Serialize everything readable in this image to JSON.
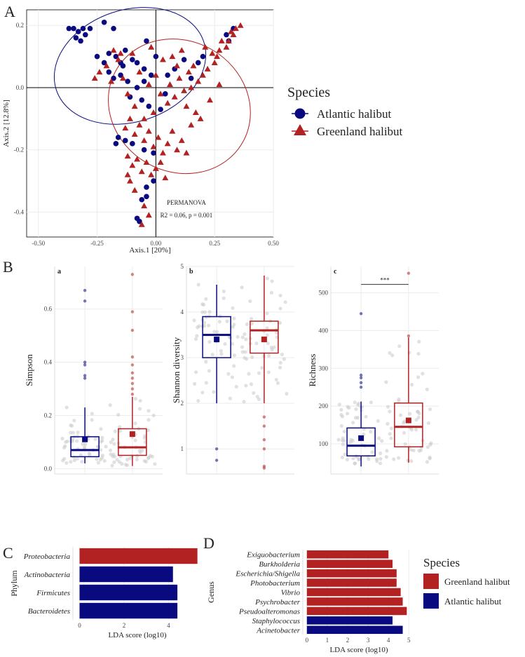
{
  "colors": {
    "atlantic": "#0a0a80",
    "greenland": "#b22222",
    "grid": "#ebebeb",
    "axis": "#333333",
    "jitter": "#c8c8c8"
  },
  "panels": {
    "A": "A",
    "B": "B",
    "C": "C",
    "D": "D"
  },
  "chart_data": [
    {
      "id": "pcoa",
      "type": "scatter",
      "xlabel": "Axis.1   [20%]",
      "ylabel": "Axis.2   [12.8%]",
      "xlim": [
        -0.55,
        0.5
      ],
      "ylim": [
        -0.48,
        0.25
      ],
      "xticks": [
        "-0.50",
        "-0.25",
        "0.00",
        "0.25",
        "0.50"
      ],
      "xtick_values": [
        -0.5,
        -0.25,
        0,
        0.25,
        0.5
      ],
      "yticks": [
        "0.2",
        "0.0",
        "-0.2",
        "-0.4"
      ],
      "ytick_values": [
        0.2,
        0,
        -0.2,
        -0.4
      ],
      "annotation_title": "PERMANOVA",
      "annotation_text": "R2 = 0.06, p = 0.001",
      "legend_title": "Species",
      "series": [
        {
          "name": "Atlantic halibut",
          "marker": "circle",
          "points": [
            [
              -0.37,
              0.19
            ],
            [
              -0.35,
              0.19
            ],
            [
              -0.33,
              0.18
            ],
            [
              -0.34,
              0.16
            ],
            [
              -0.32,
              0.15
            ],
            [
              -0.3,
              0.17
            ],
            [
              -0.31,
              0.19
            ],
            [
              -0.28,
              0.19
            ],
            [
              -0.22,
              0.21
            ],
            [
              -0.18,
              0.19
            ],
            [
              -0.25,
              0.1
            ],
            [
              -0.22,
              0.08
            ],
            [
              -0.2,
              0.11
            ],
            [
              -0.17,
              0.1
            ],
            [
              -0.15,
              0.08
            ],
            [
              -0.14,
              0.07
            ],
            [
              -0.13,
              0.12
            ],
            [
              -0.1,
              0.09
            ],
            [
              -0.08,
              0.08
            ],
            [
              -0.05,
              0.06
            ],
            [
              -0.04,
              0.15
            ],
            [
              0.0,
              0.1
            ],
            [
              -0.02,
              0.04
            ],
            [
              -0.05,
              0.02
            ],
            [
              -0.08,
              0.0
            ],
            [
              -0.12,
              0.02
            ],
            [
              -0.15,
              0.04
            ],
            [
              -0.18,
              0.03
            ],
            [
              -0.2,
              0.05
            ],
            [
              -0.11,
              -0.03
            ],
            [
              -0.06,
              -0.04
            ],
            [
              -0.03,
              -0.06
            ],
            [
              0.02,
              -0.07
            ],
            [
              0.04,
              -0.02
            ],
            [
              0.05,
              0.04
            ],
            [
              0.08,
              0.06
            ],
            [
              0.12,
              0.09
            ],
            [
              0.15,
              0.03
            ],
            [
              0.18,
              0.08
            ],
            [
              0.2,
              0.1
            ],
            [
              0.3,
              0.17
            ],
            [
              0.33,
              0.19
            ],
            [
              0.31,
              0.15
            ],
            [
              -0.13,
              -0.17
            ],
            [
              -0.1,
              -0.18
            ],
            [
              -0.05,
              -0.2
            ],
            [
              -0.01,
              -0.21
            ],
            [
              -0.17,
              -0.18
            ],
            [
              -0.16,
              -0.16
            ],
            [
              -0.04,
              -0.32
            ],
            [
              -0.04,
              -0.35
            ],
            [
              -0.06,
              -0.36
            ],
            [
              -0.07,
              -0.43
            ],
            [
              -0.08,
              -0.42
            ],
            [
              -0.01,
              -0.3
            ]
          ]
        },
        {
          "name": "Greenland halibut",
          "marker": "triangle",
          "points": [
            [
              0.36,
              0.2
            ],
            [
              0.34,
              0.19
            ],
            [
              0.33,
              0.17
            ],
            [
              0.32,
              0.18
            ],
            [
              0.31,
              0.15
            ],
            [
              0.3,
              0.13
            ],
            [
              0.28,
              0.15
            ],
            [
              0.27,
              0.12
            ],
            [
              0.26,
              0.1
            ],
            [
              0.25,
              0.08
            ],
            [
              0.24,
              0.11
            ],
            [
              0.22,
              0.06
            ],
            [
              0.21,
              0.13
            ],
            [
              0.2,
              0.04
            ],
            [
              0.18,
              0.02
            ],
            [
              0.16,
              0.07
            ],
            [
              0.15,
              0.0
            ],
            [
              0.14,
              0.05
            ],
            [
              0.12,
              -0.01
            ],
            [
              0.1,
              0.03
            ],
            [
              0.09,
              0.07
            ],
            [
              0.08,
              -0.03
            ],
            [
              0.06,
              0.01
            ],
            [
              0.05,
              -0.05
            ],
            [
              0.03,
              0.09
            ],
            [
              0.02,
              -0.02
            ],
            [
              0.0,
              0.04
            ],
            [
              -0.01,
              -0.08
            ],
            [
              -0.03,
              0.01
            ],
            [
              -0.05,
              -0.1
            ],
            [
              -0.07,
              0.05
            ],
            [
              -0.09,
              -0.06
            ],
            [
              -0.1,
              0.11
            ],
            [
              -0.12,
              -0.02
            ],
            [
              -0.14,
              0.03
            ],
            [
              -0.16,
              0.09
            ],
            [
              -0.19,
              0.02
            ],
            [
              -0.21,
              0.07
            ],
            [
              -0.24,
              0.05
            ],
            [
              -0.26,
              0.03
            ],
            [
              -0.18,
              0.12
            ],
            [
              -0.15,
              0.11
            ],
            [
              -0.13,
              -0.13
            ],
            [
              -0.11,
              -0.1
            ],
            [
              -0.09,
              -0.15
            ],
            [
              -0.07,
              -0.12
            ],
            [
              -0.05,
              -0.17
            ],
            [
              -0.03,
              -0.14
            ],
            [
              -0.01,
              -0.19
            ],
            [
              0.01,
              -0.16
            ],
            [
              0.03,
              -0.21
            ],
            [
              0.05,
              -0.18
            ],
            [
              0.07,
              -0.14
            ],
            [
              0.09,
              -0.2
            ],
            [
              0.11,
              -0.17
            ],
            [
              0.13,
              -0.21
            ],
            [
              0.15,
              -0.12
            ],
            [
              0.17,
              -0.08
            ],
            [
              0.19,
              -0.1
            ],
            [
              0.23,
              -0.04
            ],
            [
              -0.12,
              -0.22
            ],
            [
              -0.1,
              -0.25
            ],
            [
              -0.08,
              -0.23
            ],
            [
              -0.06,
              -0.27
            ],
            [
              -0.04,
              -0.24
            ],
            [
              -0.02,
              -0.28
            ],
            [
              0.0,
              -0.26
            ],
            [
              0.02,
              -0.24
            ],
            [
              0.04,
              -0.29
            ],
            [
              -0.11,
              -0.3
            ],
            [
              -0.09,
              -0.33
            ],
            [
              -0.12,
              -0.28
            ],
            [
              -0.03,
              -0.41
            ],
            [
              -0.06,
              -0.44
            ],
            [
              -0.05,
              -0.38
            ],
            [
              0.27,
              0.01
            ],
            [
              0.11,
              0.12
            ],
            [
              0.07,
              0.1
            ],
            [
              -0.02,
              0.13
            ],
            [
              0.13,
              -0.06
            ]
          ]
        }
      ],
      "ellipses": [
        {
          "series": "Atlantic halibut",
          "cx": -0.11,
          "cy": 0.07,
          "rx": 0.33,
          "ry": 0.18,
          "angle_deg": -18
        },
        {
          "series": "Greenland halibut",
          "cx": 0.1,
          "cy": -0.06,
          "rx": 0.31,
          "ry": 0.21,
          "angle_deg": 30
        }
      ]
    },
    {
      "id": "simpson",
      "type": "box",
      "panel_label": "a",
      "ylabel": "Simpson",
      "ylim": [
        -0.02,
        0.76
      ],
      "yticks": [
        "0.0",
        "0.2",
        "0.4",
        "0.6"
      ],
      "ytick_values": [
        0,
        0.2,
        0.4,
        0.6
      ],
      "groups": [
        {
          "name": "Atlantic halibut",
          "min": 0.02,
          "q1": 0.045,
          "median": 0.07,
          "q3": 0.12,
          "max": 0.23,
          "mean": 0.11,
          "outliers": [
            0.67,
            0.63,
            0.4,
            0.39,
            0.35,
            0.34
          ]
        },
        {
          "name": "Greenland halibut",
          "min": 0.01,
          "q1": 0.05,
          "median": 0.08,
          "q3": 0.15,
          "max": 0.27,
          "mean": 0.13,
          "outliers": [
            0.73,
            0.59,
            0.52,
            0.42,
            0.39,
            0.36,
            0.34,
            0.32,
            0.3,
            0.28
          ]
        }
      ]
    },
    {
      "id": "shannon",
      "type": "box",
      "panel_label": "b",
      "ylabel": "Shannon diversity",
      "ylim": [
        0.45,
        5.0
      ],
      "yticks": [
        "1",
        "2",
        "3",
        "4",
        "5"
      ],
      "ytick_values": [
        1,
        2,
        3,
        4,
        5
      ],
      "groups": [
        {
          "name": "Atlantic halibut",
          "min": 2.0,
          "q1": 3.0,
          "median": 3.5,
          "q3": 3.9,
          "max": 4.6,
          "mean": 3.4,
          "outliers": [
            1.0,
            0.75
          ]
        },
        {
          "name": "Greenland halibut",
          "min": 2.0,
          "q1": 3.1,
          "median": 3.6,
          "q3": 3.8,
          "max": 4.8,
          "mean": 3.4,
          "outliers": [
            1.7,
            1.5,
            1.2,
            1.0,
            0.62,
            0.58
          ]
        }
      ]
    },
    {
      "id": "richness",
      "type": "box",
      "panel_label": "c",
      "ylabel": "Richness",
      "ylim": [
        20,
        570
      ],
      "yticks": [
        "100",
        "200",
        "300",
        "400",
        "500"
      ],
      "ytick_values": [
        100,
        200,
        300,
        400,
        500
      ],
      "significance": "***",
      "groups": [
        {
          "name": "Atlantic halibut",
          "min": 40,
          "q1": 68,
          "median": 95,
          "q3": 142,
          "max": 212,
          "mean": 115,
          "outliers": [
            445,
            282,
            275,
            262,
            250
          ]
        },
        {
          "name": "Greenland halibut",
          "min": 50,
          "q1": 92,
          "median": 145,
          "q3": 208,
          "max": 382,
          "mean": 162,
          "outliers": [
            552,
            386
          ]
        }
      ]
    },
    {
      "id": "lda_phylum",
      "type": "bar",
      "orientation": "horizontal",
      "xlabel": "LDA score (log10)",
      "ylabel": "Phylum",
      "xlim": [
        -0.3,
        5.5
      ],
      "xticks": [
        "0",
        "2",
        "4"
      ],
      "xtick_values": [
        0,
        2,
        4
      ],
      "categories": [
        "Proteobacteria",
        "Actinobacteria",
        "Firmicutes",
        "Bacteroidetes"
      ],
      "values": [
        5.3,
        4.2,
        4.4,
        4.4
      ],
      "groups": [
        "Greenland halibut",
        "Atlantic halibut",
        "Atlantic halibut",
        "Atlantic halibut"
      ]
    },
    {
      "id": "lda_genus",
      "type": "bar",
      "orientation": "horizontal",
      "xlabel": "LDA score (log10)",
      "ylabel": "Genus",
      "xlim": [
        -0.2,
        5.3
      ],
      "xticks": [
        "0",
        "1",
        "2",
        "3",
        "4",
        "5"
      ],
      "xtick_values": [
        0,
        1,
        2,
        3,
        4,
        5
      ],
      "categories": [
        "Exiguobacterium",
        "Burkholderia",
        "Escherichia/Shigella",
        "Photobacterium",
        "Vibrio",
        "Psychrobacter",
        "Pseudoalteromonas",
        "Staphylococcus",
        "Acinetobacter"
      ],
      "values": [
        4.0,
        4.2,
        4.4,
        4.4,
        4.6,
        4.7,
        4.9,
        4.2,
        4.7
      ],
      "groups": [
        "Greenland halibut",
        "Greenland halibut",
        "Greenland halibut",
        "Greenland halibut",
        "Greenland halibut",
        "Greenland halibut",
        "Greenland halibut",
        "Atlantic halibut",
        "Atlantic halibut"
      ],
      "legend_title": "Species",
      "legend_entries": [
        "Greenland halibut",
        "Atlantic halibut"
      ]
    }
  ]
}
